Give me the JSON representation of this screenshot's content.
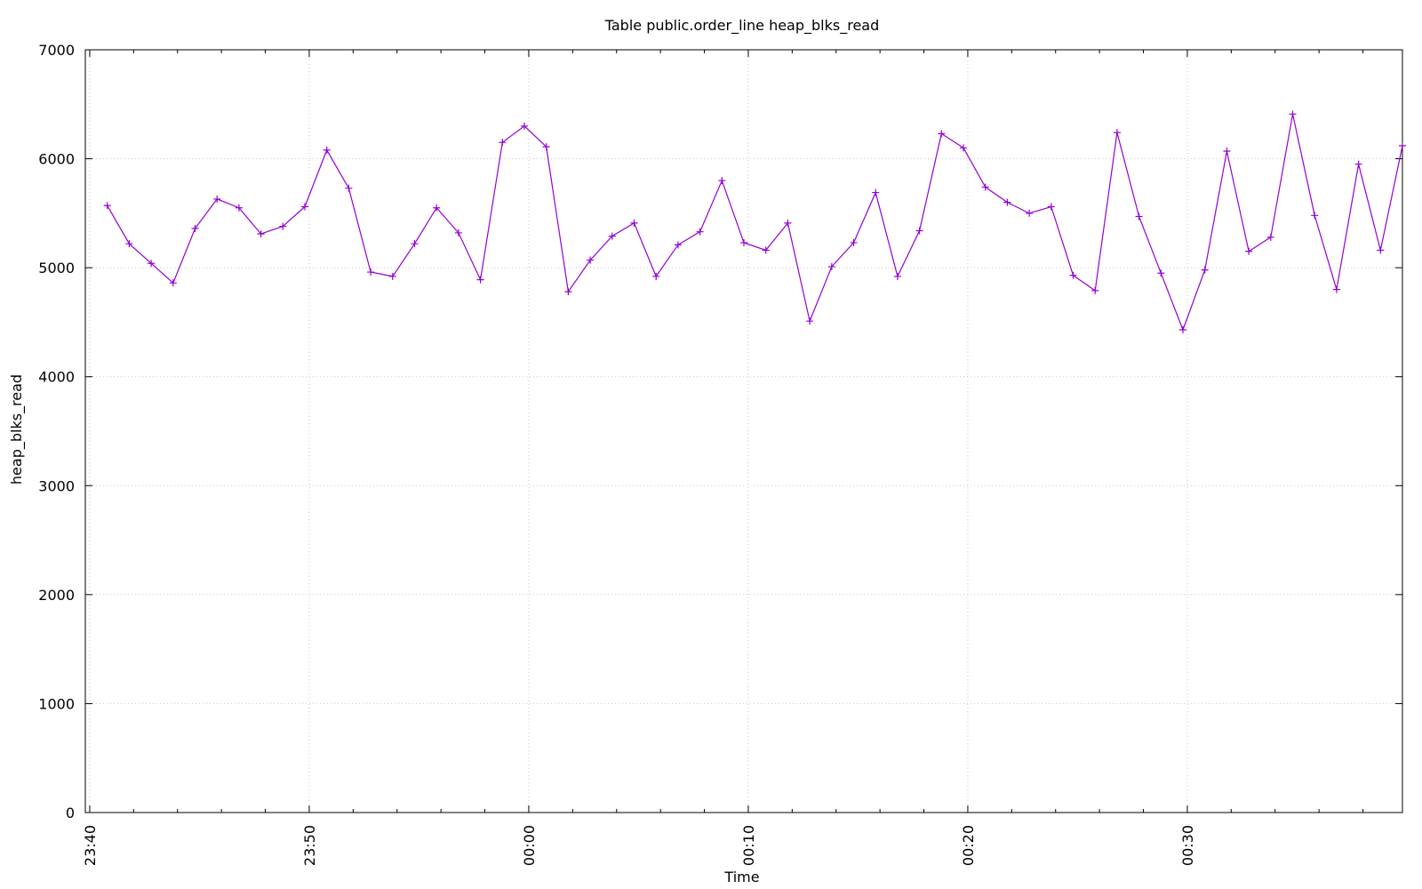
{
  "chart_data": {
    "type": "line",
    "title": "Table public.order_line heap_blks_read",
    "xlabel": "Time",
    "ylabel": "heap_blks_read",
    "ylim": [
      0,
      7000
    ],
    "yticks": [
      0,
      1000,
      2000,
      3000,
      4000,
      5000,
      6000,
      7000
    ],
    "x_start": "23:39:48",
    "x_end": "00:39:48",
    "xticks": [
      {
        "label": "23:40",
        "time": "23:40:00"
      },
      {
        "label": "23:50",
        "time": "23:50:00"
      },
      {
        "label": "00:00",
        "time": "00:00:00"
      },
      {
        "label": "00:10",
        "time": "00:10:00"
      },
      {
        "label": "00:20",
        "time": "00:20:00"
      },
      {
        "label": "00:30",
        "time": "00:30:00"
      }
    ],
    "grid": true,
    "series": [
      {
        "color": "#9400d3",
        "marker": "plus",
        "points": [
          [
            "23:40:48",
            5570
          ],
          [
            "23:41:48",
            5220
          ],
          [
            "23:42:48",
            5040
          ],
          [
            "23:43:48",
            4860
          ],
          [
            "23:44:48",
            5360
          ],
          [
            "23:45:48",
            5630
          ],
          [
            "23:46:48",
            5550
          ],
          [
            "23:47:48",
            5310
          ],
          [
            "23:48:48",
            5380
          ],
          [
            "23:49:48",
            5560
          ],
          [
            "23:50:48",
            6080
          ],
          [
            "23:51:48",
            5730
          ],
          [
            "23:52:48",
            4960
          ],
          [
            "23:53:48",
            4920
          ],
          [
            "23:54:48",
            5220
          ],
          [
            "23:55:48",
            5550
          ],
          [
            "23:56:48",
            5320
          ],
          [
            "23:57:48",
            4890
          ],
          [
            "23:58:48",
            6150
          ],
          [
            "23:59:48",
            6300
          ],
          [
            "00:00:48",
            6110
          ],
          [
            "00:01:48",
            4780
          ],
          [
            "00:02:48",
            5070
          ],
          [
            "00:03:48",
            5290
          ],
          [
            "00:04:48",
            5410
          ],
          [
            "00:05:48",
            4920
          ],
          [
            "00:06:48",
            5210
          ],
          [
            "00:07:48",
            5330
          ],
          [
            "00:08:48",
            5800
          ],
          [
            "00:09:48",
            5230
          ],
          [
            "00:10:48",
            5160
          ],
          [
            "00:11:48",
            5410
          ],
          [
            "00:12:48",
            4510
          ],
          [
            "00:13:48",
            5010
          ],
          [
            "00:14:48",
            5230
          ],
          [
            "00:15:48",
            5690
          ],
          [
            "00:16:48",
            4920
          ],
          [
            "00:17:48",
            5340
          ],
          [
            "00:18:48",
            6230
          ],
          [
            "00:19:48",
            6100
          ],
          [
            "00:20:48",
            5740
          ],
          [
            "00:21:48",
            5600
          ],
          [
            "00:22:48",
            5500
          ],
          [
            "00:23:48",
            5560
          ],
          [
            "00:24:48",
            4930
          ],
          [
            "00:25:48",
            4790
          ],
          [
            "00:26:48",
            6240
          ],
          [
            "00:27:48",
            5470
          ],
          [
            "00:28:48",
            4950
          ],
          [
            "00:29:48",
            4430
          ],
          [
            "00:30:48",
            4980
          ],
          [
            "00:31:48",
            6070
          ],
          [
            "00:32:48",
            5150
          ],
          [
            "00:33:48",
            5280
          ],
          [
            "00:34:48",
            6410
          ],
          [
            "00:35:48",
            5480
          ],
          [
            "00:36:48",
            4800
          ],
          [
            "00:37:48",
            5950
          ],
          [
            "00:38:48",
            5160
          ],
          [
            "00:39:48",
            6120
          ]
        ]
      }
    ]
  }
}
